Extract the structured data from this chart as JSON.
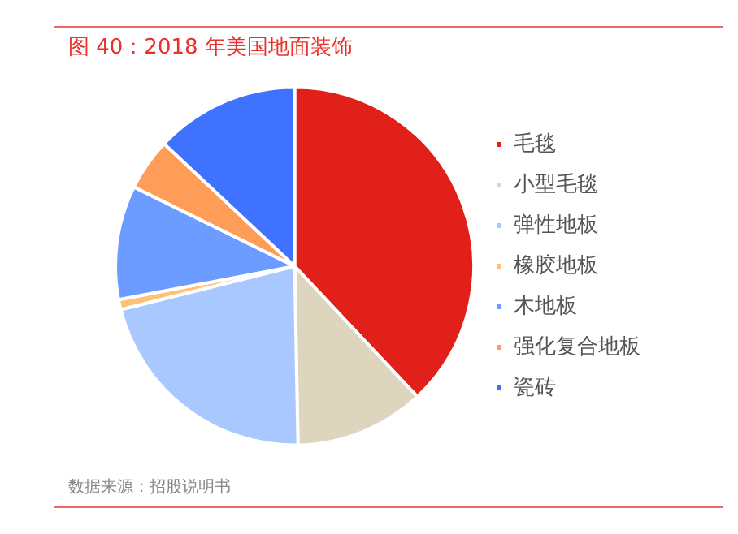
{
  "chart_data": {
    "type": "pie",
    "title": "图 40：2018 年美国地面装饰",
    "categories": [
      "毛毯",
      "小型毛毯",
      "弹性地板",
      "橡胶地板",
      "木地板",
      "强化复合地板",
      "瓷砖"
    ],
    "values": [
      38,
      11.7,
      21.4,
      0.9,
      10.3,
      4.7,
      13
    ],
    "colors": [
      "#e02019",
      "#ded5bf",
      "#a8c8ff",
      "#ffc274",
      "#6c9cff",
      "#ff9c57",
      "#3f72ff"
    ],
    "legend": "right",
    "annotations": [
      "数据来源：招股说明书"
    ]
  }
}
